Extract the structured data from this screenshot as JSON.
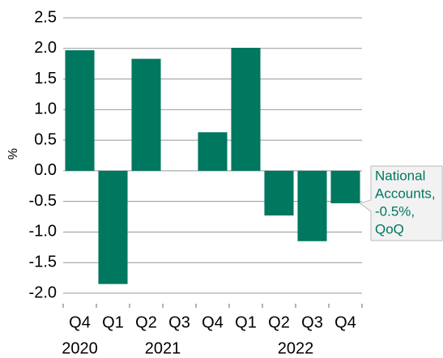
{
  "chart_data": {
    "type": "bar",
    "y_label": "%",
    "categories": [
      "Q4",
      "Q1",
      "Q2",
      "Q3",
      "Q4",
      "Q1",
      "Q2",
      "Q3",
      "Q4"
    ],
    "year_groups": [
      {
        "label": "2020",
        "count": 1
      },
      {
        "label": "2021",
        "count": 4
      },
      {
        "label": "2022",
        "count": 4
      }
    ],
    "values": [
      1.97,
      -1.85,
      1.83,
      0,
      0.63,
      2.01,
      -0.73,
      -1.15,
      -0.53
    ],
    "color": "#00775f",
    "ylim": [
      -2.0,
      2.5
    ],
    "yticks": [
      {
        "value": -2.0,
        "label": "-2.0"
      },
      -1.5,
      {
        "value": -1.0,
        "label": "-1.0"
      },
      -0.5,
      {
        "value": 0.0,
        "label": "0.0"
      },
      0.5,
      {
        "value": 1.0,
        "label": "1.0"
      },
      1.5,
      {
        "value": 2.0,
        "label": "2.0"
      },
      2.5
    ],
    "grid": true,
    "annotation": {
      "lines": [
        "National",
        "Accounts,",
        "-0.5%,",
        "QoQ"
      ]
    }
  }
}
